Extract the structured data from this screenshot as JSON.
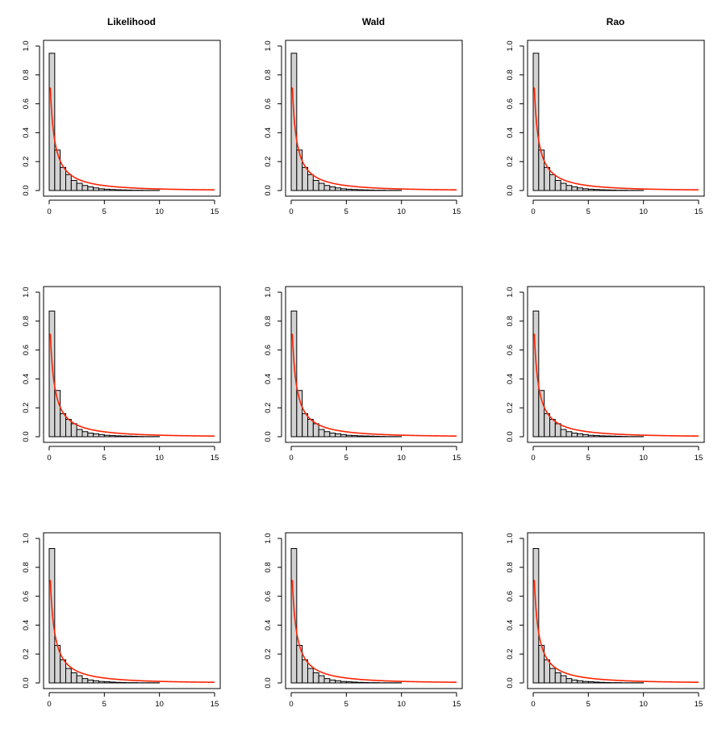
{
  "colors": {
    "bar_fill": "#d3d3d3",
    "bar_stroke": "#000000",
    "curve": "#ff2200",
    "frame": "#000000"
  },
  "column_titles": [
    "Likelihood",
    "Wald",
    "Rao"
  ],
  "chart_data": [
    {
      "type": "histogram",
      "title": "Likelihood",
      "row": 1,
      "col": 1,
      "xlim": [
        0,
        15
      ],
      "ylim": [
        0,
        1
      ],
      "xticks": [
        0,
        5,
        10,
        15
      ],
      "yticks": [
        0.0,
        0.2,
        0.4,
        0.6,
        0.8,
        1.0
      ],
      "bin_width": 0.5,
      "bin_starts": [
        0,
        0.5,
        1,
        1.5,
        2,
        2.5,
        3,
        3.5,
        4,
        4.5,
        5,
        5.5,
        6,
        6.5,
        7,
        7.5,
        8,
        8.5,
        9,
        9.5
      ],
      "values": [
        0.95,
        0.28,
        0.16,
        0.11,
        0.07,
        0.05,
        0.035,
        0.025,
        0.018,
        0.012,
        0.009,
        0.007,
        0.005,
        0.004,
        0.003,
        0.002,
        0.002,
        0.001,
        0.001,
        0.001
      ],
      "curve": "density",
      "curve_rate": 0.95
    },
    {
      "type": "histogram",
      "title": "Wald",
      "row": 1,
      "col": 2,
      "xlim": [
        0,
        15
      ],
      "ylim": [
        0,
        1
      ],
      "xticks": [
        0,
        5,
        10,
        15
      ],
      "yticks": [
        0.0,
        0.2,
        0.4,
        0.6,
        0.8,
        1.0
      ],
      "bin_width": 0.5,
      "bin_starts": [
        0,
        0.5,
        1,
        1.5,
        2,
        2.5,
        3,
        3.5,
        4,
        4.5,
        5,
        5.5,
        6,
        6.5,
        7,
        7.5,
        8,
        8.5,
        9,
        9.5
      ],
      "values": [
        0.95,
        0.28,
        0.16,
        0.11,
        0.07,
        0.05,
        0.035,
        0.025,
        0.018,
        0.012,
        0.009,
        0.007,
        0.005,
        0.004,
        0.003,
        0.002,
        0.002,
        0.001,
        0.001,
        0.001
      ],
      "curve": "density",
      "curve_rate": 0.95
    },
    {
      "type": "histogram",
      "title": "Rao",
      "row": 1,
      "col": 3,
      "xlim": [
        0,
        15
      ],
      "ylim": [
        0,
        1
      ],
      "xticks": [
        0,
        5,
        10,
        15
      ],
      "yticks": [
        0.0,
        0.2,
        0.4,
        0.6,
        0.8,
        1.0
      ],
      "bin_width": 0.5,
      "bin_starts": [
        0,
        0.5,
        1,
        1.5,
        2,
        2.5,
        3,
        3.5,
        4,
        4.5,
        5,
        5.5,
        6,
        6.5,
        7,
        7.5,
        8,
        8.5,
        9,
        9.5
      ],
      "values": [
        0.95,
        0.28,
        0.16,
        0.11,
        0.07,
        0.05,
        0.035,
        0.025,
        0.018,
        0.012,
        0.009,
        0.007,
        0.005,
        0.004,
        0.003,
        0.002,
        0.002,
        0.001,
        0.001,
        0.001
      ],
      "curve": "density",
      "curve_rate": 0.95
    },
    {
      "type": "histogram",
      "title": "",
      "row": 2,
      "col": 1,
      "xlim": [
        0,
        15
      ],
      "ylim": [
        0,
        1
      ],
      "xticks": [
        0,
        5,
        10,
        15
      ],
      "yticks": [
        0.0,
        0.2,
        0.4,
        0.6,
        0.8,
        1.0
      ],
      "bin_width": 0.5,
      "bin_starts": [
        0,
        0.5,
        1,
        1.5,
        2,
        2.5,
        3,
        3.5,
        4,
        4.5,
        5,
        5.5,
        6,
        6.5,
        7,
        7.5,
        8,
        8.5,
        9,
        9.5
      ],
      "values": [
        0.87,
        0.32,
        0.16,
        0.12,
        0.09,
        0.05,
        0.035,
        0.025,
        0.02,
        0.015,
        0.01,
        0.008,
        0.006,
        0.005,
        0.004,
        0.003,
        0.002,
        0.001,
        0.001,
        0.001
      ],
      "curve": "density",
      "curve_rate": 0.95
    },
    {
      "type": "histogram",
      "title": "",
      "row": 2,
      "col": 2,
      "xlim": [
        0,
        15
      ],
      "ylim": [
        0,
        1
      ],
      "xticks": [
        0,
        5,
        10,
        15
      ],
      "yticks": [
        0.0,
        0.2,
        0.4,
        0.6,
        0.8,
        1.0
      ],
      "bin_width": 0.5,
      "bin_starts": [
        0,
        0.5,
        1,
        1.5,
        2,
        2.5,
        3,
        3.5,
        4,
        4.5,
        5,
        5.5,
        6,
        6.5,
        7,
        7.5,
        8,
        8.5,
        9,
        9.5
      ],
      "values": [
        0.87,
        0.32,
        0.16,
        0.12,
        0.09,
        0.05,
        0.035,
        0.025,
        0.02,
        0.015,
        0.01,
        0.008,
        0.006,
        0.005,
        0.004,
        0.003,
        0.002,
        0.001,
        0.001,
        0.001
      ],
      "curve": "density",
      "curve_rate": 0.95
    },
    {
      "type": "histogram",
      "title": "",
      "row": 2,
      "col": 3,
      "xlim": [
        0,
        15
      ],
      "ylim": [
        0,
        1
      ],
      "xticks": [
        0,
        5,
        10,
        15
      ],
      "yticks": [
        0.0,
        0.2,
        0.4,
        0.6,
        0.8,
        1.0
      ],
      "bin_width": 0.5,
      "bin_starts": [
        0,
        0.5,
        1,
        1.5,
        2,
        2.5,
        3,
        3.5,
        4,
        4.5,
        5,
        5.5,
        6,
        6.5,
        7,
        7.5,
        8,
        8.5,
        9,
        9.5
      ],
      "values": [
        0.87,
        0.32,
        0.16,
        0.12,
        0.09,
        0.05,
        0.035,
        0.025,
        0.02,
        0.015,
        0.01,
        0.008,
        0.006,
        0.005,
        0.004,
        0.003,
        0.002,
        0.001,
        0.001,
        0.001
      ],
      "curve": "density",
      "curve_rate": 0.95
    },
    {
      "type": "histogram",
      "title": "",
      "row": 3,
      "col": 1,
      "xlim": [
        0,
        15
      ],
      "ylim": [
        0,
        1
      ],
      "xticks": [
        0,
        5,
        10,
        15
      ],
      "yticks": [
        0.0,
        0.2,
        0.4,
        0.6,
        0.8,
        1.0
      ],
      "bin_width": 0.5,
      "bin_starts": [
        0,
        0.5,
        1,
        1.5,
        2,
        2.5,
        3,
        3.5,
        4,
        4.5,
        5,
        5.5,
        6,
        6.5,
        7,
        7.5,
        8,
        8.5,
        9,
        9.5
      ],
      "values": [
        0.93,
        0.26,
        0.16,
        0.1,
        0.07,
        0.05,
        0.03,
        0.02,
        0.015,
        0.01,
        0.008,
        0.006,
        0.004,
        0.003,
        0.002,
        0.002,
        0.001,
        0.001,
        0.001,
        0.001
      ],
      "curve": "density",
      "curve_rate": 0.95
    },
    {
      "type": "histogram",
      "title": "",
      "row": 3,
      "col": 2,
      "xlim": [
        0,
        15
      ],
      "ylim": [
        0,
        1
      ],
      "xticks": [
        0,
        5,
        10,
        15
      ],
      "yticks": [
        0.0,
        0.2,
        0.4,
        0.6,
        0.8,
        1.0
      ],
      "bin_width": 0.5,
      "bin_starts": [
        0,
        0.5,
        1,
        1.5,
        2,
        2.5,
        3,
        3.5,
        4,
        4.5,
        5,
        5.5,
        6,
        6.5,
        7,
        7.5,
        8,
        8.5,
        9,
        9.5
      ],
      "values": [
        0.93,
        0.26,
        0.16,
        0.1,
        0.07,
        0.05,
        0.03,
        0.02,
        0.015,
        0.01,
        0.008,
        0.006,
        0.004,
        0.003,
        0.002,
        0.002,
        0.001,
        0.001,
        0.001,
        0.001
      ],
      "curve": "density",
      "curve_rate": 0.95
    },
    {
      "type": "histogram",
      "title": "",
      "row": 3,
      "col": 3,
      "xlim": [
        0,
        15
      ],
      "ylim": [
        0,
        1
      ],
      "xticks": [
        0,
        5,
        10,
        15
      ],
      "yticks": [
        0.0,
        0.2,
        0.4,
        0.6,
        0.8,
        1.0
      ],
      "bin_width": 0.5,
      "bin_starts": [
        0,
        0.5,
        1,
        1.5,
        2,
        2.5,
        3,
        3.5,
        4,
        4.5,
        5,
        5.5,
        6,
        6.5,
        7,
        7.5,
        8,
        8.5,
        9,
        9.5
      ],
      "values": [
        0.93,
        0.26,
        0.16,
        0.1,
        0.07,
        0.05,
        0.03,
        0.02,
        0.015,
        0.01,
        0.008,
        0.006,
        0.004,
        0.003,
        0.002,
        0.002,
        0.001,
        0.001,
        0.001,
        0.001
      ],
      "curve": "density",
      "curve_rate": 0.95
    }
  ]
}
